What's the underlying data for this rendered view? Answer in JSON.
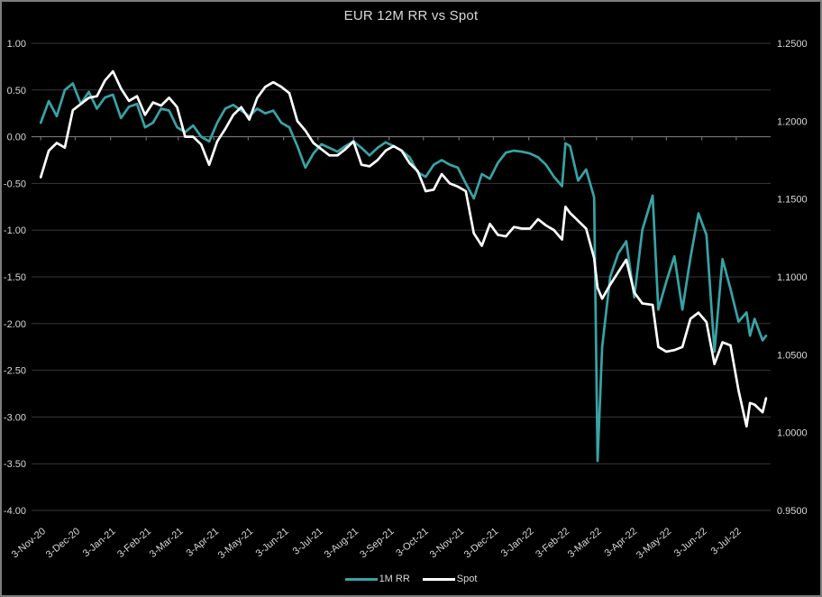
{
  "chart_data": {
    "type": "line",
    "title": "EUR 12M RR vs Spot",
    "background": "#000000",
    "grid": true,
    "legend_position": "bottom",
    "colors": {
      "grid": "#373737",
      "zero_axis": "#848484",
      "text": "#d9d9d9",
      "frame": "#7d7d7d"
    },
    "left_axis": {
      "ticks": [
        "1.00",
        "0.50",
        "0.00",
        "-0.50",
        "-1.00",
        "-1.50",
        "-2.00",
        "-2.50",
        "-3.00",
        "-3.50",
        "-4.00"
      ],
      "range": [
        -4.0,
        1.0
      ]
    },
    "right_axis": {
      "ticks": [
        "1.2500",
        "1.2000",
        "1.1500",
        "1.1000",
        "1.0500",
        "1.0000",
        "0.9500"
      ],
      "range": [
        0.95,
        1.25
      ]
    },
    "timeline": {
      "start": "2020-10-26",
      "end": "2022-08-02"
    },
    "x_ticks": [
      {
        "label": "3-Nov-20",
        "date": "2020-11-03"
      },
      {
        "label": "3-Dec-20",
        "date": "2020-12-03"
      },
      {
        "label": "3-Jan-21",
        "date": "2021-01-03"
      },
      {
        "label": "3-Feb-21",
        "date": "2021-02-03"
      },
      {
        "label": "3-Mar-21",
        "date": "2021-03-03"
      },
      {
        "label": "3-Apr-21",
        "date": "2021-04-03"
      },
      {
        "label": "3-May-21",
        "date": "2021-05-03"
      },
      {
        "label": "3-Jun-21",
        "date": "2021-06-03"
      },
      {
        "label": "3-Jul-21",
        "date": "2021-07-03"
      },
      {
        "label": "3-Aug-21",
        "date": "2021-08-03"
      },
      {
        "label": "3-Sep-21",
        "date": "2021-09-03"
      },
      {
        "label": "3-Oct-21",
        "date": "2021-10-03"
      },
      {
        "label": "3-Nov-21",
        "date": "2021-11-03"
      },
      {
        "label": "3-Dec-21",
        "date": "2021-12-03"
      },
      {
        "label": "3-Jan-22",
        "date": "2022-01-03"
      },
      {
        "label": "3-Feb-22",
        "date": "2022-02-03"
      },
      {
        "label": "3-Mar-22",
        "date": "2022-03-03"
      },
      {
        "label": "3-Apr-22",
        "date": "2022-04-03"
      },
      {
        "label": "3-May-22",
        "date": "2022-05-03"
      },
      {
        "label": "3-Jun-22",
        "date": "2022-06-03"
      },
      {
        "label": "3-Jul-22",
        "date": "2022-07-03"
      }
    ],
    "dates": [
      "2020-11-03",
      "2020-11-10",
      "2020-11-17",
      "2020-11-24",
      "2020-12-01",
      "2020-12-08",
      "2020-12-15",
      "2020-12-22",
      "2020-12-29",
      "2021-01-05",
      "2021-01-12",
      "2021-01-19",
      "2021-01-26",
      "2021-02-02",
      "2021-02-09",
      "2021-02-16",
      "2021-02-23",
      "2021-03-02",
      "2021-03-09",
      "2021-03-16",
      "2021-03-23",
      "2021-03-30",
      "2021-04-06",
      "2021-04-13",
      "2021-04-20",
      "2021-04-27",
      "2021-05-04",
      "2021-05-11",
      "2021-05-18",
      "2021-05-25",
      "2021-06-01",
      "2021-06-08",
      "2021-06-15",
      "2021-06-22",
      "2021-06-29",
      "2021-07-06",
      "2021-07-13",
      "2021-07-20",
      "2021-07-27",
      "2021-08-03",
      "2021-08-10",
      "2021-08-17",
      "2021-08-24",
      "2021-08-31",
      "2021-09-07",
      "2021-09-14",
      "2021-09-21",
      "2021-09-28",
      "2021-10-05",
      "2021-10-12",
      "2021-10-19",
      "2021-10-26",
      "2021-11-02",
      "2021-11-09",
      "2021-11-16",
      "2021-11-23",
      "2021-11-30",
      "2021-12-07",
      "2021-12-14",
      "2021-12-21",
      "2021-12-28",
      "2022-01-04",
      "2022-01-11",
      "2022-01-18",
      "2022-01-25",
      "2022-02-01",
      "2022-02-04",
      "2022-02-08",
      "2022-02-15",
      "2022-02-22",
      "2022-03-01",
      "2022-03-04",
      "2022-03-08",
      "2022-03-15",
      "2022-03-22",
      "2022-03-29",
      "2022-04-05",
      "2022-04-12",
      "2022-04-21",
      "2022-04-26",
      "2022-05-03",
      "2022-05-10",
      "2022-05-17",
      "2022-05-24",
      "2022-05-31",
      "2022-06-07",
      "2022-06-14",
      "2022-06-21",
      "2022-06-28",
      "2022-07-05",
      "2022-07-12",
      "2022-07-15",
      "2022-07-19",
      "2022-07-26",
      "2022-07-29"
    ],
    "series": [
      {
        "name": "1M RR",
        "axis": "left",
        "color": "#38a3a5",
        "values": [
          0.15,
          0.38,
          0.22,
          0.5,
          0.57,
          0.35,
          0.48,
          0.3,
          0.42,
          0.45,
          0.2,
          0.32,
          0.35,
          0.1,
          0.15,
          0.3,
          0.28,
          0.1,
          0.05,
          0.12,
          0.0,
          -0.05,
          0.15,
          0.3,
          0.34,
          0.28,
          0.22,
          0.3,
          0.25,
          0.28,
          0.15,
          0.1,
          -0.1,
          -0.33,
          -0.18,
          -0.08,
          -0.12,
          -0.16,
          -0.1,
          -0.05,
          -0.12,
          -0.2,
          -0.12,
          -0.06,
          -0.1,
          -0.15,
          -0.22,
          -0.38,
          -0.43,
          -0.3,
          -0.25,
          -0.3,
          -0.33,
          -0.5,
          -0.66,
          -0.4,
          -0.45,
          -0.28,
          -0.17,
          -0.15,
          -0.16,
          -0.18,
          -0.22,
          -0.3,
          -0.43,
          -0.53,
          -0.07,
          -0.1,
          -0.47,
          -0.35,
          -0.65,
          -3.47,
          -2.25,
          -1.5,
          -1.25,
          -1.12,
          -1.72,
          -1.0,
          -0.63,
          -1.85,
          -1.55,
          -1.28,
          -1.85,
          -1.3,
          -0.82,
          -1.05,
          -2.3,
          -1.31,
          -1.63,
          -1.98,
          -1.88,
          -2.13,
          -1.95,
          -2.18,
          -2.13
        ]
      },
      {
        "name": "Spot",
        "axis": "right",
        "color": "#ffffff",
        "values": [
          1.164,
          1.181,
          1.186,
          1.183,
          1.207,
          1.211,
          1.215,
          1.216,
          1.226,
          1.232,
          1.221,
          1.213,
          1.216,
          1.204,
          1.212,
          1.21,
          1.215,
          1.209,
          1.19,
          1.19,
          1.185,
          1.172,
          1.187,
          1.195,
          1.204,
          1.209,
          1.201,
          1.215,
          1.222,
          1.225,
          1.222,
          1.218,
          1.2,
          1.194,
          1.186,
          1.182,
          1.178,
          1.178,
          1.182,
          1.187,
          1.172,
          1.171,
          1.175,
          1.181,
          1.184,
          1.181,
          1.173,
          1.168,
          1.155,
          1.156,
          1.166,
          1.16,
          1.158,
          1.155,
          1.128,
          1.12,
          1.134,
          1.127,
          1.126,
          1.132,
          1.131,
          1.131,
          1.137,
          1.133,
          1.13,
          1.124,
          1.145,
          1.141,
          1.136,
          1.131,
          1.112,
          1.093,
          1.086,
          1.095,
          1.103,
          1.111,
          1.09,
          1.083,
          1.082,
          1.055,
          1.052,
          1.053,
          1.055,
          1.073,
          1.077,
          1.071,
          1.044,
          1.058,
          1.056,
          1.027,
          1.004,
          1.019,
          1.018,
          1.013,
          1.022
        ]
      }
    ]
  }
}
